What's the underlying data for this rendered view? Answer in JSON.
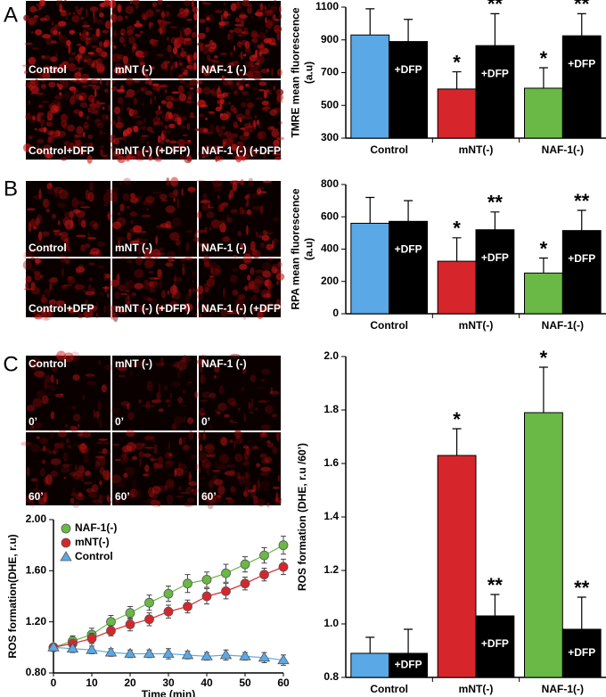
{
  "panel_labels": [
    "A",
    "B",
    "C"
  ],
  "micrographs": [
    {
      "cells": [
        {
          "bottom": "Control"
        },
        {
          "bottom": "mNT (-)"
        },
        {
          "bottom": "NAF-1 (-)"
        },
        {
          "bottom": "Control+DFP"
        },
        {
          "bottom": "mNT (-) (+DFP)"
        },
        {
          "bottom": "NAF-1 (-) (+DFP)"
        }
      ]
    },
    {
      "cells": [
        {
          "bottom": "Control"
        },
        {
          "bottom": "mNT (-)"
        },
        {
          "bottom": "NAF-1 (-)"
        },
        {
          "bottom": "Control+DFP"
        },
        {
          "bottom": "mNT (-) (+DFP)"
        },
        {
          "bottom": "NAF-1 (-) (+DFP)"
        }
      ]
    },
    {
      "cells": [
        {
          "top": "Control",
          "bottom": "0’"
        },
        {
          "top": "mNT (-)",
          "bottom": "0’"
        },
        {
          "top": "NAF-1 (-)",
          "bottom": "0’"
        },
        {
          "bottom": "60’"
        },
        {
          "bottom": "60’"
        },
        {
          "bottom": "60’"
        }
      ]
    }
  ],
  "chart_data": [
    {
      "type": "bar",
      "ylabel": [
        "TMRE mean fluorescence",
        "(a.u)"
      ],
      "categories": [
        "Control",
        "mNT(-)",
        "NAF-1(-)"
      ],
      "ylim": [
        300,
        1100
      ],
      "yticks": [
        300,
        500,
        700,
        900,
        1100
      ],
      "series": [
        {
          "colors": [
            "#5aa9e6",
            "#d7262b",
            "#6ab845"
          ],
          "values": [
            930,
            600,
            605
          ],
          "errors": [
            160,
            105,
            125
          ],
          "marks": [
            null,
            "*",
            "*"
          ]
        },
        {
          "name": "+DFP",
          "color": "#000000",
          "values": [
            890,
            865,
            925
          ],
          "errors": [
            135,
            195,
            135
          ],
          "marks": [
            null,
            "**",
            "**"
          ]
        }
      ]
    },
    {
      "type": "bar",
      "ylabel": [
        "RPA mean fluorescence",
        "(a.u)"
      ],
      "categories": [
        "Control",
        "mNT(-)",
        "NAF-1(-)"
      ],
      "ylim": [
        0,
        800
      ],
      "yticks": [
        0,
        200,
        400,
        600,
        800
      ],
      "series": [
        {
          "colors": [
            "#5aa9e6",
            "#d7262b",
            "#6ab845"
          ],
          "values": [
            560,
            325,
            252
          ],
          "errors": [
            160,
            145,
            93
          ],
          "marks": [
            null,
            "*",
            "*"
          ]
        },
        {
          "name": "+DFP",
          "color": "#000000",
          "values": [
            572,
            520,
            515
          ],
          "errors": [
            128,
            110,
            125
          ],
          "marks": [
            null,
            "**",
            "**"
          ]
        }
      ]
    },
    {
      "type": "line",
      "xlabel": "Time (min)",
      "ylabel": [
        "ROS formation(DHE, r.u)"
      ],
      "x": [
        0,
        5,
        10,
        15,
        20,
        25,
        30,
        35,
        40,
        45,
        50,
        55,
        60
      ],
      "xlim": [
        0,
        60
      ],
      "xticks": [
        0,
        10,
        20,
        30,
        40,
        50,
        60
      ],
      "ylim": [
        0.8,
        2.0
      ],
      "yticks": [
        {
          "value": 0.8,
          "label": "0.80"
        },
        {
          "value": 1.2,
          "label": "1.20"
        },
        {
          "value": 1.6,
          "label": "1.60"
        },
        {
          "value": 2.0,
          "label": "2.00"
        }
      ],
      "legend": "upper left",
      "series": [
        {
          "name": "NAF-1(-)",
          "color": "#6ab845",
          "marker": "circle",
          "values": [
            1.0,
            1.05,
            1.1,
            1.2,
            1.27,
            1.35,
            1.42,
            1.5,
            1.53,
            1.58,
            1.65,
            1.72,
            1.8
          ],
          "errors": [
            0.02,
            0.04,
            0.05,
            0.05,
            0.05,
            0.06,
            0.06,
            0.07,
            0.06,
            0.07,
            0.06,
            0.06,
            0.07
          ]
        },
        {
          "name": "mNT(-)",
          "color": "#d7262b",
          "marker": "circle",
          "values": [
            1.0,
            1.03,
            1.07,
            1.13,
            1.18,
            1.22,
            1.28,
            1.32,
            1.4,
            1.44,
            1.5,
            1.57,
            1.63
          ],
          "errors": [
            0.02,
            0.03,
            0.04,
            0.04,
            0.05,
            0.05,
            0.05,
            0.05,
            0.06,
            0.06,
            0.05,
            0.05,
            0.06
          ]
        },
        {
          "name": "Control",
          "color": "#5aa9e6",
          "marker": "triangle",
          "values": [
            1.0,
            0.99,
            0.98,
            0.96,
            0.95,
            0.95,
            0.95,
            0.94,
            0.93,
            0.94,
            0.93,
            0.92,
            0.9
          ],
          "errors": [
            0.02,
            0.03,
            0.03,
            0.03,
            0.03,
            0.03,
            0.04,
            0.03,
            0.03,
            0.04,
            0.03,
            0.04,
            0.04
          ]
        }
      ]
    },
    {
      "type": "bar",
      "ylabel": [
        "ROS formation (DHE, r.u /60’)"
      ],
      "categories": [
        "Control",
        "mNT(-)",
        "NAF-1(-)"
      ],
      "ylim": [
        0.8,
        2.0
      ],
      "yticks": [
        0.8,
        {
          "value": 1.0,
          "label": "1.0"
        },
        1.2,
        1.4,
        1.6,
        1.8,
        {
          "value": 2.0,
          "label": "2.0"
        }
      ],
      "series": [
        {
          "colors": [
            "#5aa9e6",
            "#d7262b",
            "#6ab845"
          ],
          "values": [
            0.89,
            1.63,
            1.79
          ],
          "errors": [
            0.06,
            0.1,
            0.17
          ],
          "marks": [
            null,
            "*",
            "*"
          ]
        },
        {
          "name": "+DFP",
          "color": "#000000",
          "values": [
            0.89,
            1.03,
            0.98
          ],
          "errors": [
            0.09,
            0.08,
            0.12
          ],
          "marks": [
            null,
            "**",
            "**"
          ]
        }
      ]
    }
  ]
}
